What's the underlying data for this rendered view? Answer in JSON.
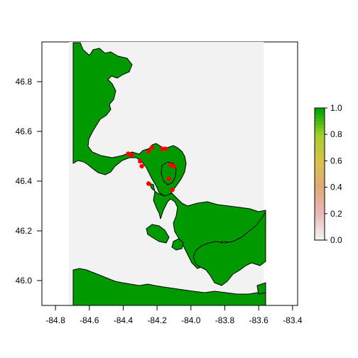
{
  "chart_data": {
    "type": "heatmap",
    "title": "",
    "xlabel": "",
    "ylabel": "",
    "xlim": [
      -84.88,
      -83.37
    ],
    "ylim": [
      45.9,
      46.96
    ],
    "x_ticks": [
      -84.8,
      -84.6,
      -84.4,
      -84.2,
      -84.0,
      -83.8,
      -83.6,
      -83.4
    ],
    "x_tick_labels": [
      "-84.8",
      "-84.6",
      "-84.4",
      "-84.2",
      "-84.0",
      "-83.8",
      "-83.6",
      "-83.4"
    ],
    "y_ticks": [
      46.0,
      46.2,
      46.4,
      46.6,
      46.8
    ],
    "y_tick_labels": [
      "46.0",
      "46.2",
      "46.4",
      "46.6",
      "46.8"
    ],
    "raster_extent": {
      "xmin": -84.72,
      "xmax": -83.57,
      "ymin": 45.9,
      "ymax": 46.96
    },
    "raster_background_value": 0.0,
    "land_value": 1.0,
    "colorbar": {
      "min": 0.0,
      "max": 1.0,
      "ticks": [
        0.0,
        0.2,
        0.4,
        0.6,
        0.8,
        1.0
      ],
      "tick_labels": [
        "0.0",
        "0.2",
        "0.4",
        "0.6",
        "0.8",
        "1.0"
      ],
      "colors": [
        "#f2f2f2",
        "#eab6b6",
        "#e0a97a",
        "#d9c24a",
        "#a6cf2a",
        "#00a600"
      ]
    },
    "points": [
      {
        "lon": -84.37,
        "lat": 46.51
      },
      {
        "lon": -84.35,
        "lat": 46.505
      },
      {
        "lon": -84.3,
        "lat": 46.48
      },
      {
        "lon": -84.29,
        "lat": 46.46
      },
      {
        "lon": -84.25,
        "lat": 46.52
      },
      {
        "lon": -84.23,
        "lat": 46.535
      },
      {
        "lon": -84.17,
        "lat": 46.53
      },
      {
        "lon": -84.15,
        "lat": 46.53
      },
      {
        "lon": -84.12,
        "lat": 46.465
      },
      {
        "lon": -84.1,
        "lat": 46.46
      },
      {
        "lon": -84.13,
        "lat": 46.41
      },
      {
        "lon": -84.25,
        "lat": 46.39
      },
      {
        "lon": -84.11,
        "lat": 46.365
      }
    ],
    "colors": {
      "land": "#009900",
      "land_outline": "#000000",
      "background": "#f2f2f2",
      "points": "#ff0000"
    }
  }
}
